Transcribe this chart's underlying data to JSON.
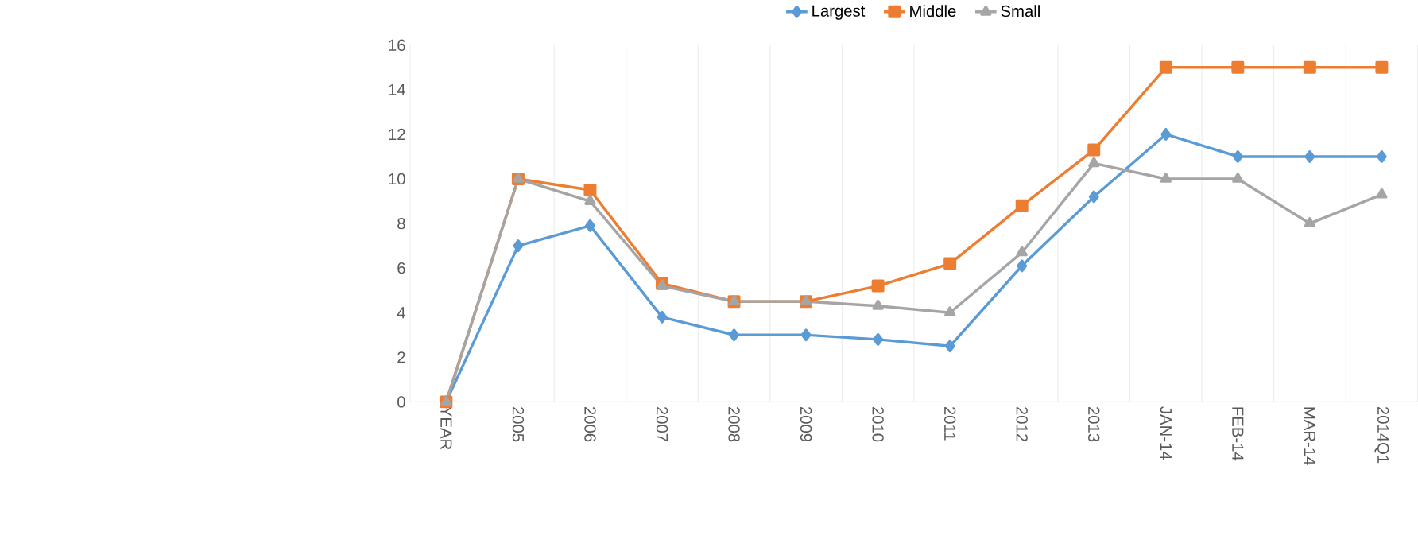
{
  "chart_data": {
    "type": "line",
    "categories": [
      "YEAR",
      "2005",
      "2006",
      "2007",
      "2008",
      "2009",
      "2010",
      "2011",
      "2012",
      "2013",
      "JAN-14",
      "FEB-14",
      "MAR-14",
      "2014Q1"
    ],
    "series": [
      {
        "name": "Largest",
        "color": "#5b9bd5",
        "marker": "diamond",
        "values": [
          0,
          7,
          7.9,
          3.8,
          3.0,
          3.0,
          2.8,
          2.5,
          6.1,
          9.2,
          12,
          11,
          11,
          11
        ]
      },
      {
        "name": "Middle",
        "color": "#ed7d31",
        "marker": "square",
        "values": [
          0,
          10,
          9.5,
          5.3,
          4.5,
          4.5,
          5.2,
          6.2,
          8.8,
          11.3,
          15,
          15,
          15,
          15
        ]
      },
      {
        "name": "Small",
        "color": "#a5a5a5",
        "marker": "triangle",
        "values": [
          0,
          10,
          9,
          5.2,
          4.5,
          4.5,
          4.3,
          4.0,
          6.7,
          10.7,
          10,
          10,
          8,
          9.3
        ]
      }
    ],
    "ylim": [
      0,
      16
    ],
    "yticks": [
      0,
      2,
      4,
      6,
      8,
      10,
      12,
      14,
      16
    ],
    "grid": "x",
    "legend": "top",
    "line_style": "solid"
  }
}
